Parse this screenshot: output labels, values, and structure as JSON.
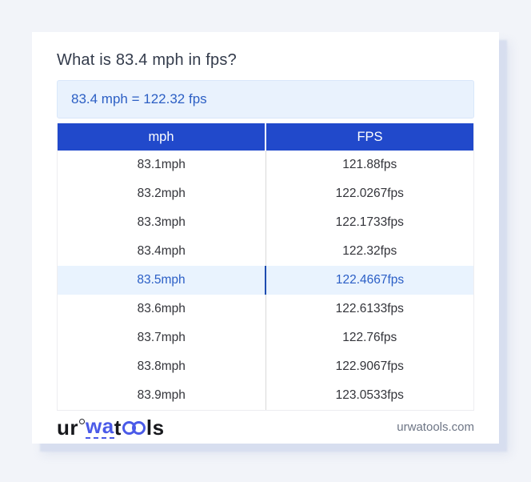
{
  "title": "What is 83.4 mph in fps?",
  "result": {
    "text": "83.4 mph = 122.32 fps"
  },
  "table": {
    "headers": [
      "mph",
      "FPS"
    ],
    "rows": [
      {
        "mph": "83.1mph",
        "fps": "121.88fps",
        "highlighted": false
      },
      {
        "mph": "83.2mph",
        "fps": "122.0267fps",
        "highlighted": false
      },
      {
        "mph": "83.3mph",
        "fps": "122.1733fps",
        "highlighted": false
      },
      {
        "mph": "83.4mph",
        "fps": "122.32fps",
        "highlighted": false
      },
      {
        "mph": "83.5mph",
        "fps": "122.4667fps",
        "highlighted": true
      },
      {
        "mph": "83.6mph",
        "fps": "122.6133fps",
        "highlighted": false
      },
      {
        "mph": "83.7mph",
        "fps": "122.76fps",
        "highlighted": false
      },
      {
        "mph": "83.8mph",
        "fps": "122.9067fps",
        "highlighted": false
      },
      {
        "mph": "83.9mph",
        "fps": "123.0533fps",
        "highlighted": false
      }
    ]
  },
  "footer": {
    "logo": {
      "part_ur": "ur",
      "part_wa": "wa",
      "part_t": "t",
      "part_oo": "oo",
      "part_ls": "ls",
      "full_name": "urwatools"
    },
    "site": "urwatools.com"
  },
  "colors": {
    "page_background": "#f2f4f9",
    "card_background": "#ffffff",
    "header_blue": "#2149cb",
    "result_box_background": "#e9f2fd",
    "result_text_blue": "#2c5fc4",
    "highlight_row_background": "#e9f3fe",
    "highlight_text_blue": "#2a5ec6",
    "logo_blue": "#4a5ae8",
    "body_text": "#33343a"
  }
}
